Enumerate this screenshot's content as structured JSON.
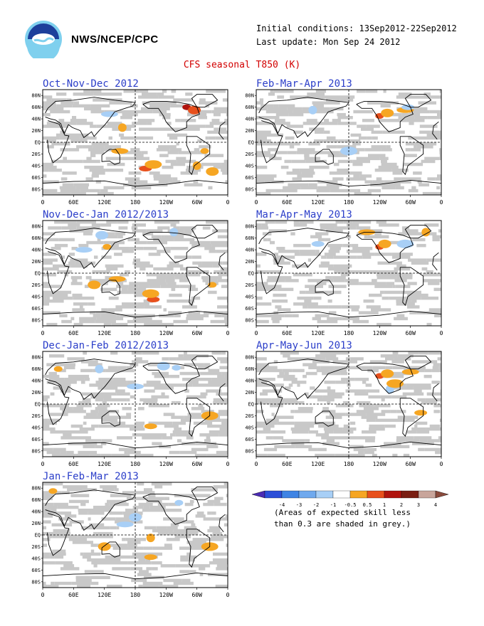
{
  "header": {
    "agency": "NWS/NCEP/CPC",
    "initial_conditions": "Initial conditions: 13Sep2012-22Sep2012",
    "last_update": "Last update: Mon Sep 24 2012",
    "title": "CFS seasonal T850 (K)"
  },
  "axis": {
    "lat_labels": [
      "80N",
      "60N",
      "40N",
      "20N",
      "EQ",
      "20S",
      "40S",
      "60S",
      "80S"
    ],
    "lon_labels": [
      "0",
      "60E",
      "120E",
      "180",
      "120W",
      "60W",
      "0"
    ]
  },
  "panels": [
    {
      "label": "Oct-Nov-Dec 2012",
      "anomalies": [
        {
          "lon": 280,
          "lat": 60,
          "v": 2.5
        },
        {
          "lon": 295,
          "lat": 55,
          "v": 1.5
        },
        {
          "lon": 130,
          "lat": 48,
          "v": -0.7
        },
        {
          "lon": 155,
          "lat": 25,
          "v": 0.7
        },
        {
          "lon": 200,
          "lat": -45,
          "v": 1.5
        },
        {
          "lon": 215,
          "lat": -38,
          "v": 0.7
        },
        {
          "lon": 315,
          "lat": -15,
          "v": 0.7
        },
        {
          "lon": 330,
          "lat": -50,
          "v": 0.7
        },
        {
          "lon": 150,
          "lat": -15,
          "v": 0.7
        },
        {
          "lon": 300,
          "lat": -40,
          "v": 0.7
        }
      ]
    },
    {
      "label": "Feb-Mar-Apr 2013",
      "anomalies": [
        {
          "lon": 240,
          "lat": 45,
          "v": 1.5
        },
        {
          "lon": 255,
          "lat": 50,
          "v": 0.7
        },
        {
          "lon": 290,
          "lat": 55,
          "v": 0.7
        },
        {
          "lon": 110,
          "lat": 55,
          "v": -0.7
        },
        {
          "lon": 295,
          "lat": 60,
          "v": -0.7
        },
        {
          "lon": 180,
          "lat": -15,
          "v": -0.7
        }
      ]
    },
    {
      "label": "Nov-Dec-Jan 2012/2013",
      "anomalies": [
        {
          "lon": 125,
          "lat": 45,
          "v": 0.7
        },
        {
          "lon": 115,
          "lat": 65,
          "v": -0.7
        },
        {
          "lon": 80,
          "lat": 40,
          "v": -0.7
        },
        {
          "lon": 255,
          "lat": 70,
          "v": -0.7
        },
        {
          "lon": 215,
          "lat": -45,
          "v": 1.5
        },
        {
          "lon": 210,
          "lat": -35,
          "v": 0.7
        },
        {
          "lon": 330,
          "lat": -20,
          "v": 0.7
        },
        {
          "lon": 100,
          "lat": -20,
          "v": 0.7
        },
        {
          "lon": 145,
          "lat": -10,
          "v": 0.7
        }
      ]
    },
    {
      "label": "Mar-Apr-May 2013",
      "anomalies": [
        {
          "lon": 240,
          "lat": 45,
          "v": 1.5
        },
        {
          "lon": 250,
          "lat": 50,
          "v": 0.7
        },
        {
          "lon": 215,
          "lat": 70,
          "v": 0.7
        },
        {
          "lon": 330,
          "lat": 70,
          "v": 0.7
        },
        {
          "lon": 120,
          "lat": 50,
          "v": -0.7
        },
        {
          "lon": 290,
          "lat": 50,
          "v": -0.7
        }
      ]
    },
    {
      "label": "Dec-Jan-Feb 2012/2013",
      "anomalies": [
        {
          "lon": 260,
          "lat": 62,
          "v": -0.7
        },
        {
          "lon": 235,
          "lat": 65,
          "v": -0.7
        },
        {
          "lon": 180,
          "lat": 30,
          "v": -0.7
        },
        {
          "lon": 110,
          "lat": 60,
          "v": -0.7
        },
        {
          "lon": 210,
          "lat": -38,
          "v": 0.7
        },
        {
          "lon": 325,
          "lat": -20,
          "v": 0.7
        },
        {
          "lon": 30,
          "lat": 60,
          "v": 0.7
        }
      ]
    },
    {
      "label": "Apr-May-Jun 2013",
      "anomalies": [
        {
          "lon": 240,
          "lat": 48,
          "v": 1.5
        },
        {
          "lon": 255,
          "lat": 52,
          "v": 0.7
        },
        {
          "lon": 300,
          "lat": 55,
          "v": 0.7
        },
        {
          "lon": 260,
          "lat": 25,
          "v": -0.7
        },
        {
          "lon": 320,
          "lat": -15,
          "v": 0.7
        },
        {
          "lon": 270,
          "lat": 35,
          "v": 0.7
        }
      ]
    },
    {
      "label": "Jan-Feb-Mar 2013",
      "anomalies": [
        {
          "lon": 265,
          "lat": 55,
          "v": -0.7
        },
        {
          "lon": 180,
          "lat": 30,
          "v": -0.7
        },
        {
          "lon": 160,
          "lat": 18,
          "v": -0.7
        },
        {
          "lon": 210,
          "lat": -5,
          "v": 0.7
        },
        {
          "lon": 210,
          "lat": -38,
          "v": 0.7
        },
        {
          "lon": 325,
          "lat": -20,
          "v": 0.7
        },
        {
          "lon": 20,
          "lat": 75,
          "v": 0.7
        },
        {
          "lon": 120,
          "lat": -20,
          "v": 0.7
        }
      ]
    }
  ],
  "legend": {
    "ticks": [
      "-4",
      "-3",
      "-2",
      "-1",
      "-0.5",
      "0.5",
      "1",
      "2",
      "3",
      "4"
    ],
    "colors": [
      "#4b2bb4",
      "#2c4fd8",
      "#3f84e4",
      "#6fa9ee",
      "#a8cff6",
      "#ffffff",
      "#f6a623",
      "#e8501c",
      "#b0140e",
      "#7a1e12",
      "#c8a59b",
      "#8a4a3c"
    ],
    "note_line1": "(Areas of expected skill less",
    "note_line2": "than 0.3 are shaded in grey.)"
  },
  "colors": {
    "skill_grey": "#c8c8c8",
    "title_red": "#d20000",
    "panel_title_blue": "#2b3ec9"
  }
}
